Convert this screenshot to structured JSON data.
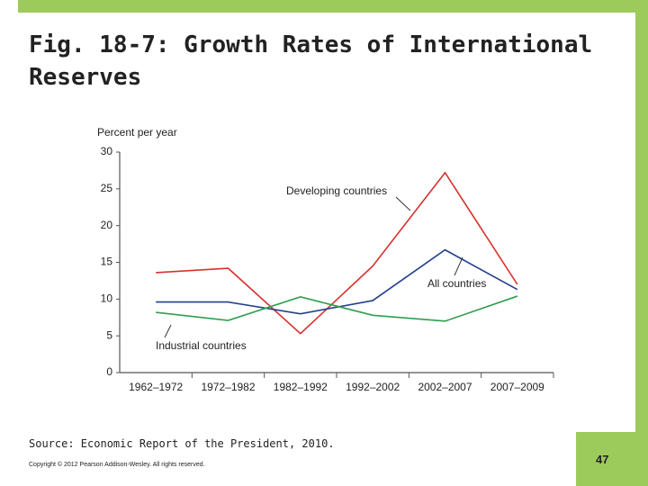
{
  "chart_data": {
    "type": "line",
    "title": "Fig. 18-7: Growth Rates of International Reserves",
    "ylabel": "Percent per year",
    "categories": [
      "1962–1972",
      "1972–1982",
      "1982–1992",
      "1992–2002",
      "2002–2007",
      "2007–2009"
    ],
    "series": [
      {
        "name": "Developing countries",
        "color": "#d8302c",
        "values": [
          13.6,
          14.2,
          5.3,
          14.5,
          27.2,
          12.0
        ]
      },
      {
        "name": "All countries",
        "color": "#23408e",
        "values": [
          9.6,
          9.6,
          8.0,
          9.8,
          16.7,
          11.3
        ]
      },
      {
        "name": "Industrial countries",
        "color": "#2f9e4f",
        "values": [
          8.2,
          7.1,
          10.3,
          7.8,
          7.0,
          10.4
        ]
      }
    ],
    "ylim": [
      0,
      30
    ],
    "yticks": [
      0,
      5,
      10,
      15,
      20,
      25,
      30
    ]
  },
  "slide": {
    "source": "Source: Economic Report of the President, 2010.",
    "copyright": "Copyright © 2012 Pearson Addison-Wesley. All rights reserved.",
    "page_number": 47
  }
}
